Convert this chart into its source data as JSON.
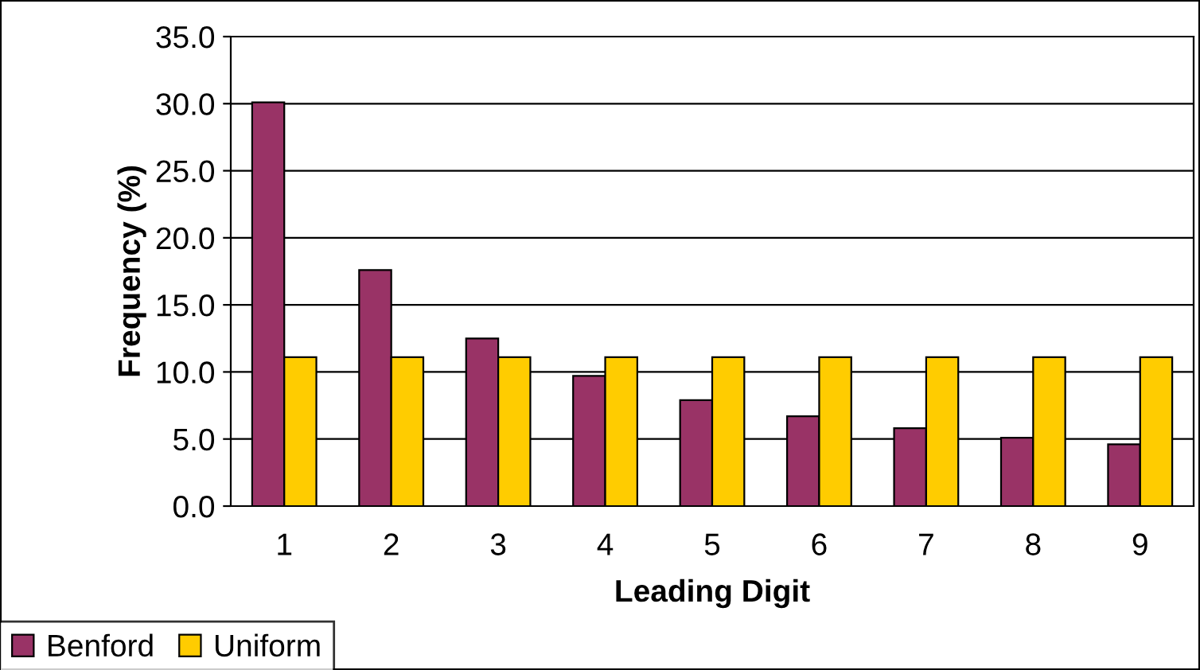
{
  "chart_data": {
    "type": "bar",
    "xlabel": "Leading Digit",
    "ylabel": "Frequency (%)",
    "categories": [
      "1",
      "2",
      "3",
      "4",
      "5",
      "6",
      "7",
      "8",
      "9"
    ],
    "series": [
      {
        "name": "Benford",
        "color": "#993366",
        "values": [
          30.1,
          17.6,
          12.5,
          9.7,
          7.9,
          6.7,
          5.8,
          5.1,
          4.6
        ]
      },
      {
        "name": "Uniform",
        "color": "#ffcc00",
        "values": [
          11.1,
          11.1,
          11.1,
          11.1,
          11.1,
          11.1,
          11.1,
          11.1,
          11.1
        ]
      }
    ],
    "ylim": [
      0,
      35
    ],
    "yticks": [
      {
        "value": 0,
        "label": "0.0"
      },
      {
        "value": 5,
        "label": "5.0"
      },
      {
        "value": 10,
        "label": "10.0"
      },
      {
        "value": 15,
        "label": "15.0"
      },
      {
        "value": 20,
        "label": "20.0"
      },
      {
        "value": 25,
        "label": "25.0"
      },
      {
        "value": 30,
        "label": "30.0"
      },
      {
        "value": 35,
        "label": "35.0"
      }
    ],
    "grid": "y",
    "legend": "bottom left"
  }
}
